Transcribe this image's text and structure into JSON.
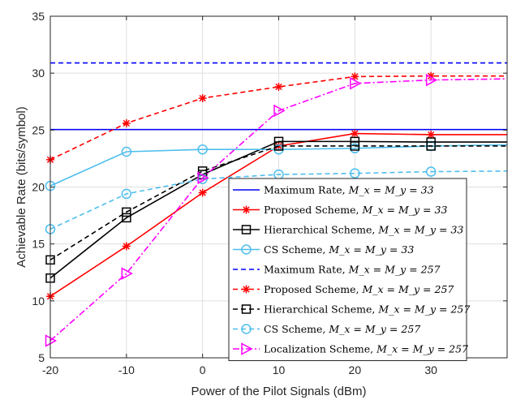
{
  "chart_data": {
    "type": "line",
    "title": "",
    "xlabel": "Power of the Pilot Signals (dBm)",
    "ylabel": "Achievable Rate (bits/symbol)",
    "xlim": [
      -20,
      40
    ],
    "ylim": [
      5,
      35
    ],
    "xticks": [
      -20,
      -10,
      0,
      10,
      20,
      30
    ],
    "xtick_labels": [
      "-20",
      "-10",
      "0",
      "10",
      "20",
      "30"
    ],
    "yticks": [
      5,
      10,
      15,
      20,
      25,
      30,
      35
    ],
    "ytick_labels": [
      "5",
      "10",
      "15",
      "20",
      "25",
      "30",
      "35"
    ],
    "grid": true,
    "legend_position": "bottom-right",
    "series": [
      {
        "name": "Maximum Rate",
        "subscript_text": "M_x = M_y = 33",
        "color": "#0000ff",
        "dash": "solid",
        "marker": "none",
        "x": [
          -20,
          40
        ],
        "values": [
          25.05,
          25.05
        ]
      },
      {
        "name": "Proposed Scheme",
        "subscript_text": "M_x = M_y = 33",
        "color": "#ff0000",
        "dash": "solid",
        "marker": "asterisk",
        "x": [
          -20,
          -10,
          0,
          10,
          20,
          30,
          40
        ],
        "values": [
          10.4,
          14.8,
          19.5,
          23.6,
          24.7,
          24.6,
          24.6
        ]
      },
      {
        "name": "Hierarchical Scheme",
        "subscript_text": "M_x = M_y = 33",
        "color": "#000000",
        "dash": "solid",
        "marker": "square",
        "x": [
          -20,
          -10,
          0,
          10,
          20,
          30,
          40
        ],
        "values": [
          12.0,
          17.3,
          21.1,
          24.0,
          24.0,
          23.95,
          23.95
        ]
      },
      {
        "name": "CS Scheme",
        "subscript_text": "M_x = M_y = 33",
        "color": "#4dbeee",
        "dash": "solid",
        "marker": "circle",
        "x": [
          -20,
          -10,
          0,
          10,
          20,
          30,
          40
        ],
        "values": [
          20.1,
          23.1,
          23.3,
          23.3,
          23.4,
          23.6,
          23.7
        ]
      },
      {
        "name": "Maximum Rate",
        "subscript_text": "M_x = M_y = 257",
        "color": "#0000ff",
        "dash": "dashed",
        "marker": "none",
        "x": [
          -20,
          40
        ],
        "values": [
          30.9,
          30.9
        ]
      },
      {
        "name": "Proposed Scheme",
        "subscript_text": "M_x = M_y = 257",
        "color": "#ff0000",
        "dash": "dashed",
        "marker": "asterisk",
        "x": [
          -20,
          -10,
          0,
          10,
          20,
          30,
          40
        ],
        "values": [
          22.4,
          25.6,
          27.8,
          28.8,
          29.7,
          29.75,
          29.75
        ]
      },
      {
        "name": "Hierarchical Scheme",
        "subscript_text": "M_x = M_y = 257",
        "color": "#000000",
        "dash": "dashed",
        "marker": "square",
        "x": [
          -20,
          -10,
          0,
          10,
          20,
          30,
          40
        ],
        "values": [
          13.6,
          17.8,
          21.4,
          23.6,
          23.6,
          23.6,
          23.6
        ]
      },
      {
        "name": "CS Scheme",
        "subscript_text": "M_x = M_y = 257",
        "color": "#4dbeee",
        "dash": "dashed",
        "marker": "circle",
        "x": [
          -20,
          -10,
          0,
          10,
          20,
          30,
          40
        ],
        "values": [
          16.3,
          19.4,
          20.7,
          21.1,
          21.2,
          21.35,
          21.4
        ]
      },
      {
        "name": "Localization Scheme",
        "subscript_text": "M_x = M_y = 257",
        "color": "#ff00ff",
        "dash": "dashdot",
        "marker": "triangle-right",
        "x": [
          -20,
          -10,
          0,
          10,
          20,
          30,
          40
        ],
        "values": [
          6.5,
          12.4,
          20.8,
          26.7,
          29.1,
          29.4,
          29.5
        ]
      }
    ]
  }
}
